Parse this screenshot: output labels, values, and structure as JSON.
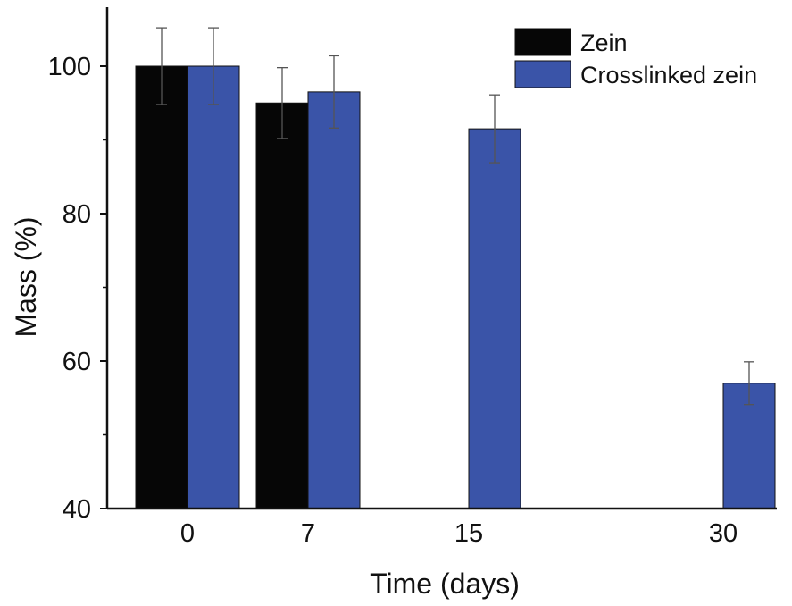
{
  "chart_data": {
    "type": "bar",
    "title": "",
    "xlabel": "Time (days)",
    "ylabel": "Mass (%)",
    "categories": [
      "0",
      "7",
      "15",
      "30"
    ],
    "ylim": [
      40,
      108
    ],
    "yticks": [
      "40",
      "60",
      "80",
      "100"
    ],
    "legend_position": "top-right",
    "series": [
      {
        "name": "Zein",
        "color": "#060606",
        "values": [
          100,
          95,
          null,
          null
        ],
        "errors": [
          5.2,
          4.8,
          null,
          null
        ]
      },
      {
        "name": "Crosslinked zein",
        "color": "#3a54a8",
        "values": [
          100,
          96.5,
          91.5,
          57
        ],
        "errors": [
          5.2,
          4.9,
          4.6,
          2.9
        ]
      }
    ]
  }
}
